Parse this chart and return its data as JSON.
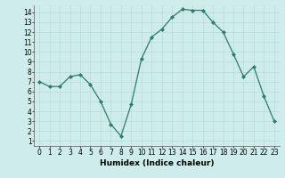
{
  "xlabel": "Humidex (Indice chaleur)",
  "x": [
    0,
    1,
    2,
    3,
    4,
    5,
    6,
    7,
    8,
    9,
    10,
    11,
    12,
    13,
    14,
    15,
    16,
    17,
    18,
    19,
    20,
    21,
    22,
    23
  ],
  "y": [
    7.0,
    6.5,
    6.5,
    7.5,
    7.7,
    6.7,
    5.0,
    2.7,
    1.5,
    4.7,
    9.3,
    11.5,
    12.3,
    13.5,
    14.3,
    14.2,
    14.2,
    13.0,
    12.0,
    9.8,
    7.5,
    8.5,
    5.5,
    3.0
  ],
  "line_color": "#2d7a6e",
  "marker": "D",
  "marker_size": 2.0,
  "bg_color": "#ceecea",
  "grid_color": "#b8dbd9",
  "xlim": [
    -0.5,
    23.5
  ],
  "ylim": [
    0.5,
    14.7
  ],
  "yticks": [
    1,
    2,
    3,
    4,
    5,
    6,
    7,
    8,
    9,
    10,
    11,
    12,
    13,
    14
  ],
  "xticks": [
    0,
    1,
    2,
    3,
    4,
    5,
    6,
    7,
    8,
    9,
    10,
    11,
    12,
    13,
    14,
    15,
    16,
    17,
    18,
    19,
    20,
    21,
    22,
    23
  ],
  "axis_fontsize": 6.5,
  "tick_fontsize": 5.5,
  "linewidth": 0.9
}
